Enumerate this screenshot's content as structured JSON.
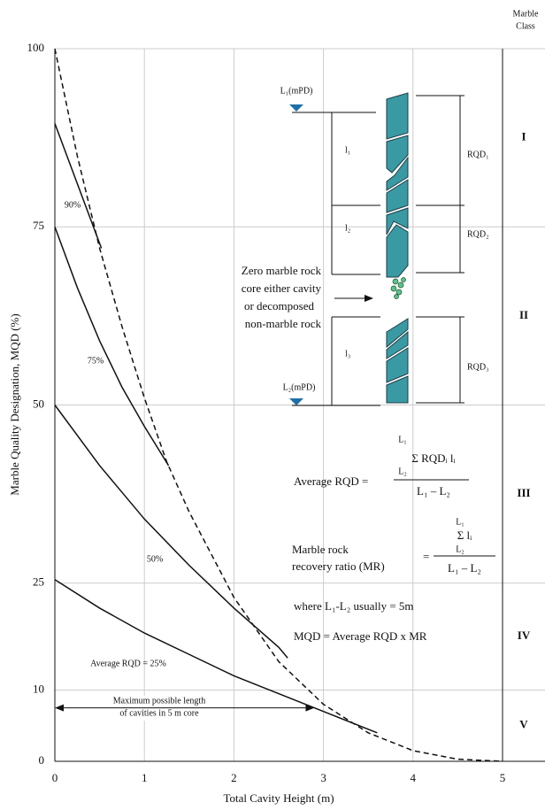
{
  "chart_data": {
    "type": "line",
    "xlabel": "Total Cavity Height (m)",
    "ylabel": "Marble Quality Designation, MQD (%)",
    "xlim": [
      0,
      5
    ],
    "ylim": [
      0,
      100
    ],
    "xticks": [
      0,
      1,
      2,
      3,
      4,
      5
    ],
    "yticks": [
      0,
      10,
      25,
      50,
      75,
      100
    ],
    "grid": true,
    "series": [
      {
        "name": "90%",
        "color": "#111",
        "dashed": false,
        "x": [
          0,
          0.52
        ],
        "values": [
          89.5,
          72
        ]
      },
      {
        "name": "75%",
        "color": "#111",
        "dashed": false,
        "x": [
          0,
          0.25,
          0.5,
          0.75,
          1,
          1.27
        ],
        "values": [
          75,
          66.5,
          59,
          52.5,
          47,
          41.5
        ]
      },
      {
        "name": "50%",
        "color": "#111",
        "dashed": false,
        "x": [
          0,
          0.5,
          1,
          1.5,
          2,
          2.5,
          2.6
        ],
        "values": [
          50,
          41.5,
          34,
          27.5,
          21.5,
          16,
          14.5
        ]
      },
      {
        "name": "Average RQD = 25%",
        "color": "#111",
        "dashed": false,
        "x": [
          0,
          0.5,
          1,
          1.5,
          2,
          2.5,
          3,
          3.6
        ],
        "values": [
          25.5,
          21.5,
          18,
          15,
          12,
          9.5,
          7,
          4
        ]
      },
      {
        "color": "#111",
        "dashed": true,
        "x": [
          0,
          0.25,
          0.5,
          0.75,
          1,
          1.25,
          1.5,
          2,
          2.5,
          3,
          3.5,
          4,
          4.5,
          5
        ],
        "values": [
          100,
          85,
          72,
          61,
          51,
          42,
          35,
          23,
          14,
          8,
          4,
          1.5,
          0.3,
          0
        ]
      }
    ],
    "arrow": {
      "x": [
        0,
        2.9
      ],
      "y": 7.5,
      "label": [
        "Maximum possible length",
        "of cavities in 5 m core"
      ]
    },
    "class_header": [
      "Marble",
      "Class"
    ],
    "class_labels": [
      "I",
      "II",
      "III",
      "IV",
      "V"
    ],
    "annotations": {
      "l1_mpd": "L₁(mPD)",
      "l2_mpd": "L₂(mPD)",
      "seg1": "l₁",
      "seg2": "l₂",
      "seg3": "l₃",
      "rqd1": "RQD₁",
      "rqd2": "RQD₂",
      "rqd3": "RQD₃",
      "zero_note": [
        "Zero marble rock",
        "core either cavity",
        "or decomposed",
        "non-marble rock"
      ],
      "avg_label": "Average RQD =",
      "avg_top": "L₁",
      "avg_sum": "Σ RQDᵢ lᵢ",
      "avg_bot": "L₂",
      "avg_den": "L₁ – L₂",
      "mr_label": [
        "Marble rock",
        "recovery ratio (MR)"
      ],
      "mr_eq": "=",
      "mr_top": "L₁",
      "mr_sum": "Σ lᵢ",
      "mr_bot": "L₂",
      "mr_den": "L₁ – L₂",
      "where": "where L₁-L₂ usually = 5m",
      "mqd": "MQD = Average RQD x MR"
    }
  }
}
